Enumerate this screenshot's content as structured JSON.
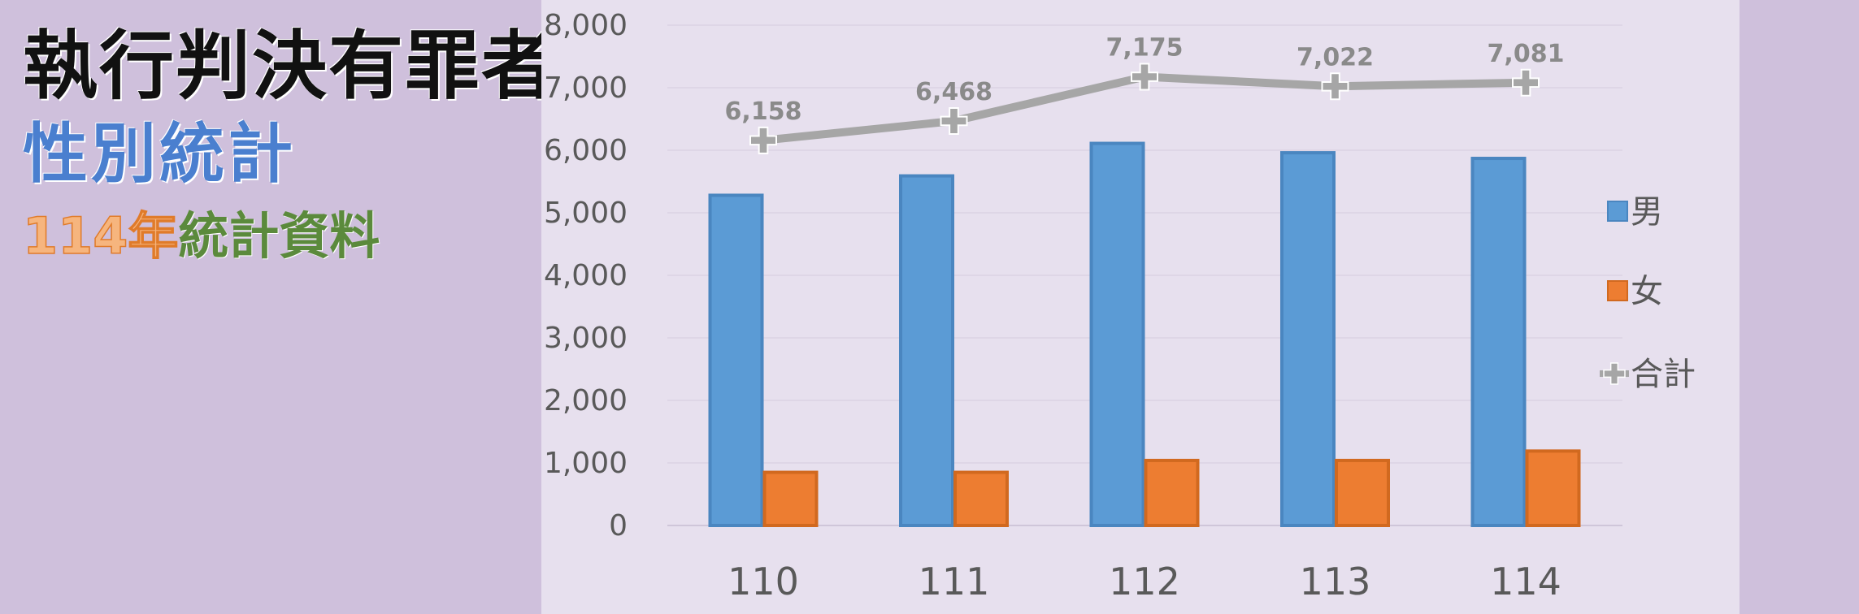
{
  "title": {
    "line1": "執行判決有罪者",
    "line2": "性別統計",
    "line3_year": "114年",
    "line3_rest": "統計資料"
  },
  "colors": {
    "male": "#5b9bd5",
    "male_border": "#4a86c0",
    "female": "#ed7d31",
    "female_border": "#d1691f",
    "total": "#a6a6a6",
    "total_label": "#8a8a8a",
    "axis_text": "#595959",
    "grid": "#dcd3e4"
  },
  "chart_data": {
    "type": "bar",
    "categories": [
      "110",
      "111",
      "112",
      "113",
      "114"
    ],
    "series": [
      {
        "name": "男",
        "type": "bar",
        "values": [
          5280,
          5590,
          6110,
          5960,
          5870
        ]
      },
      {
        "name": "女",
        "type": "bar",
        "values": [
          850,
          850,
          1040,
          1040,
          1190
        ]
      },
      {
        "name": "合計",
        "type": "line",
        "values": [
          6158,
          6468,
          7175,
          7022,
          7081
        ]
      }
    ],
    "data_labels": [
      "6,158",
      "6,468",
      "7,175",
      "7,022",
      "7,081"
    ],
    "ylim": [
      0,
      8000
    ],
    "yticks": [
      0,
      1000,
      2000,
      3000,
      4000,
      5000,
      6000,
      7000,
      8000
    ],
    "ytick_labels": [
      "0",
      "1,000",
      "2,000",
      "3,000",
      "4,000",
      "5,000",
      "6,000",
      "7,000",
      "8,000"
    ],
    "grid": true,
    "legend": {
      "position": "right",
      "entries": [
        "男",
        "女",
        "合計"
      ]
    }
  }
}
